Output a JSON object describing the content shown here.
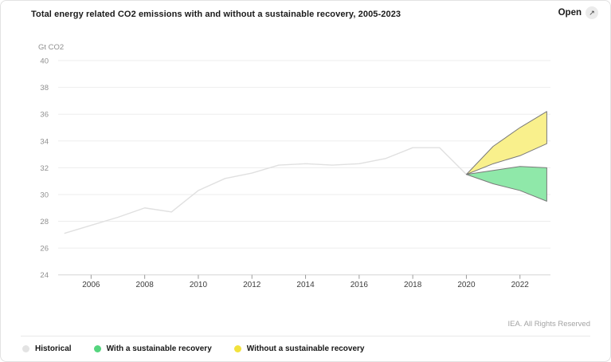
{
  "header": {
    "title": "Total energy related CO2 emissions with and without a sustainable recovery, 2005-2023",
    "open_label": "Open",
    "open_icon": "arrow-up-right"
  },
  "footer": {
    "credit": "IEA. All Rights Reserved"
  },
  "legend": {
    "items": [
      {
        "label": "Historical",
        "color": "#e3e3e3"
      },
      {
        "label": "With a sustainable recovery",
        "color": "#55d57e"
      },
      {
        "label": "Without a sustainable recovery",
        "color": "#f2e23c"
      }
    ]
  },
  "chart_data": {
    "type": "area",
    "title": "Total energy related CO2 emissions with and without a sustainable recovery, 2005-2023",
    "xlabel": "",
    "ylabel": "Gt CO2",
    "ylim": [
      24,
      40
    ],
    "yticks": [
      40,
      38,
      36,
      34,
      32,
      30,
      28,
      26,
      24
    ],
    "xlim": [
      2005,
      2023
    ],
    "xticks": [
      2006,
      2008,
      2010,
      2012,
      2014,
      2016,
      2018,
      2020,
      2022
    ],
    "grid": true,
    "legend_position": "bottom-left",
    "series": [
      {
        "name": "Historical",
        "type": "line",
        "color": "#e0e0e0",
        "x": [
          2005,
          2006,
          2007,
          2008,
          2009,
          2010,
          2011,
          2012,
          2013,
          2014,
          2015,
          2016,
          2017,
          2018,
          2019,
          2020
        ],
        "y": [
          27.1,
          27.7,
          28.3,
          29.0,
          28.7,
          30.3,
          31.2,
          31.6,
          32.2,
          32.3,
          32.2,
          32.3,
          32.7,
          33.5,
          33.5,
          31.5
        ]
      },
      {
        "name": "With a sustainable recovery",
        "type": "band",
        "fill": "#8fe8a9",
        "edge": "#7a7a7a",
        "x": [
          2020,
          2021,
          2022,
          2023
        ],
        "upper": [
          31.5,
          31.8,
          32.1,
          32.0
        ],
        "lower": [
          31.5,
          30.8,
          30.3,
          29.5
        ]
      },
      {
        "name": "Without a sustainable recovery",
        "type": "band",
        "fill": "#f9f08c",
        "edge": "#7a7a7a",
        "x": [
          2020,
          2021,
          2022,
          2023
        ],
        "upper": [
          31.5,
          33.6,
          35.0,
          36.2
        ],
        "lower": [
          31.5,
          32.3,
          32.9,
          33.8
        ]
      }
    ]
  }
}
